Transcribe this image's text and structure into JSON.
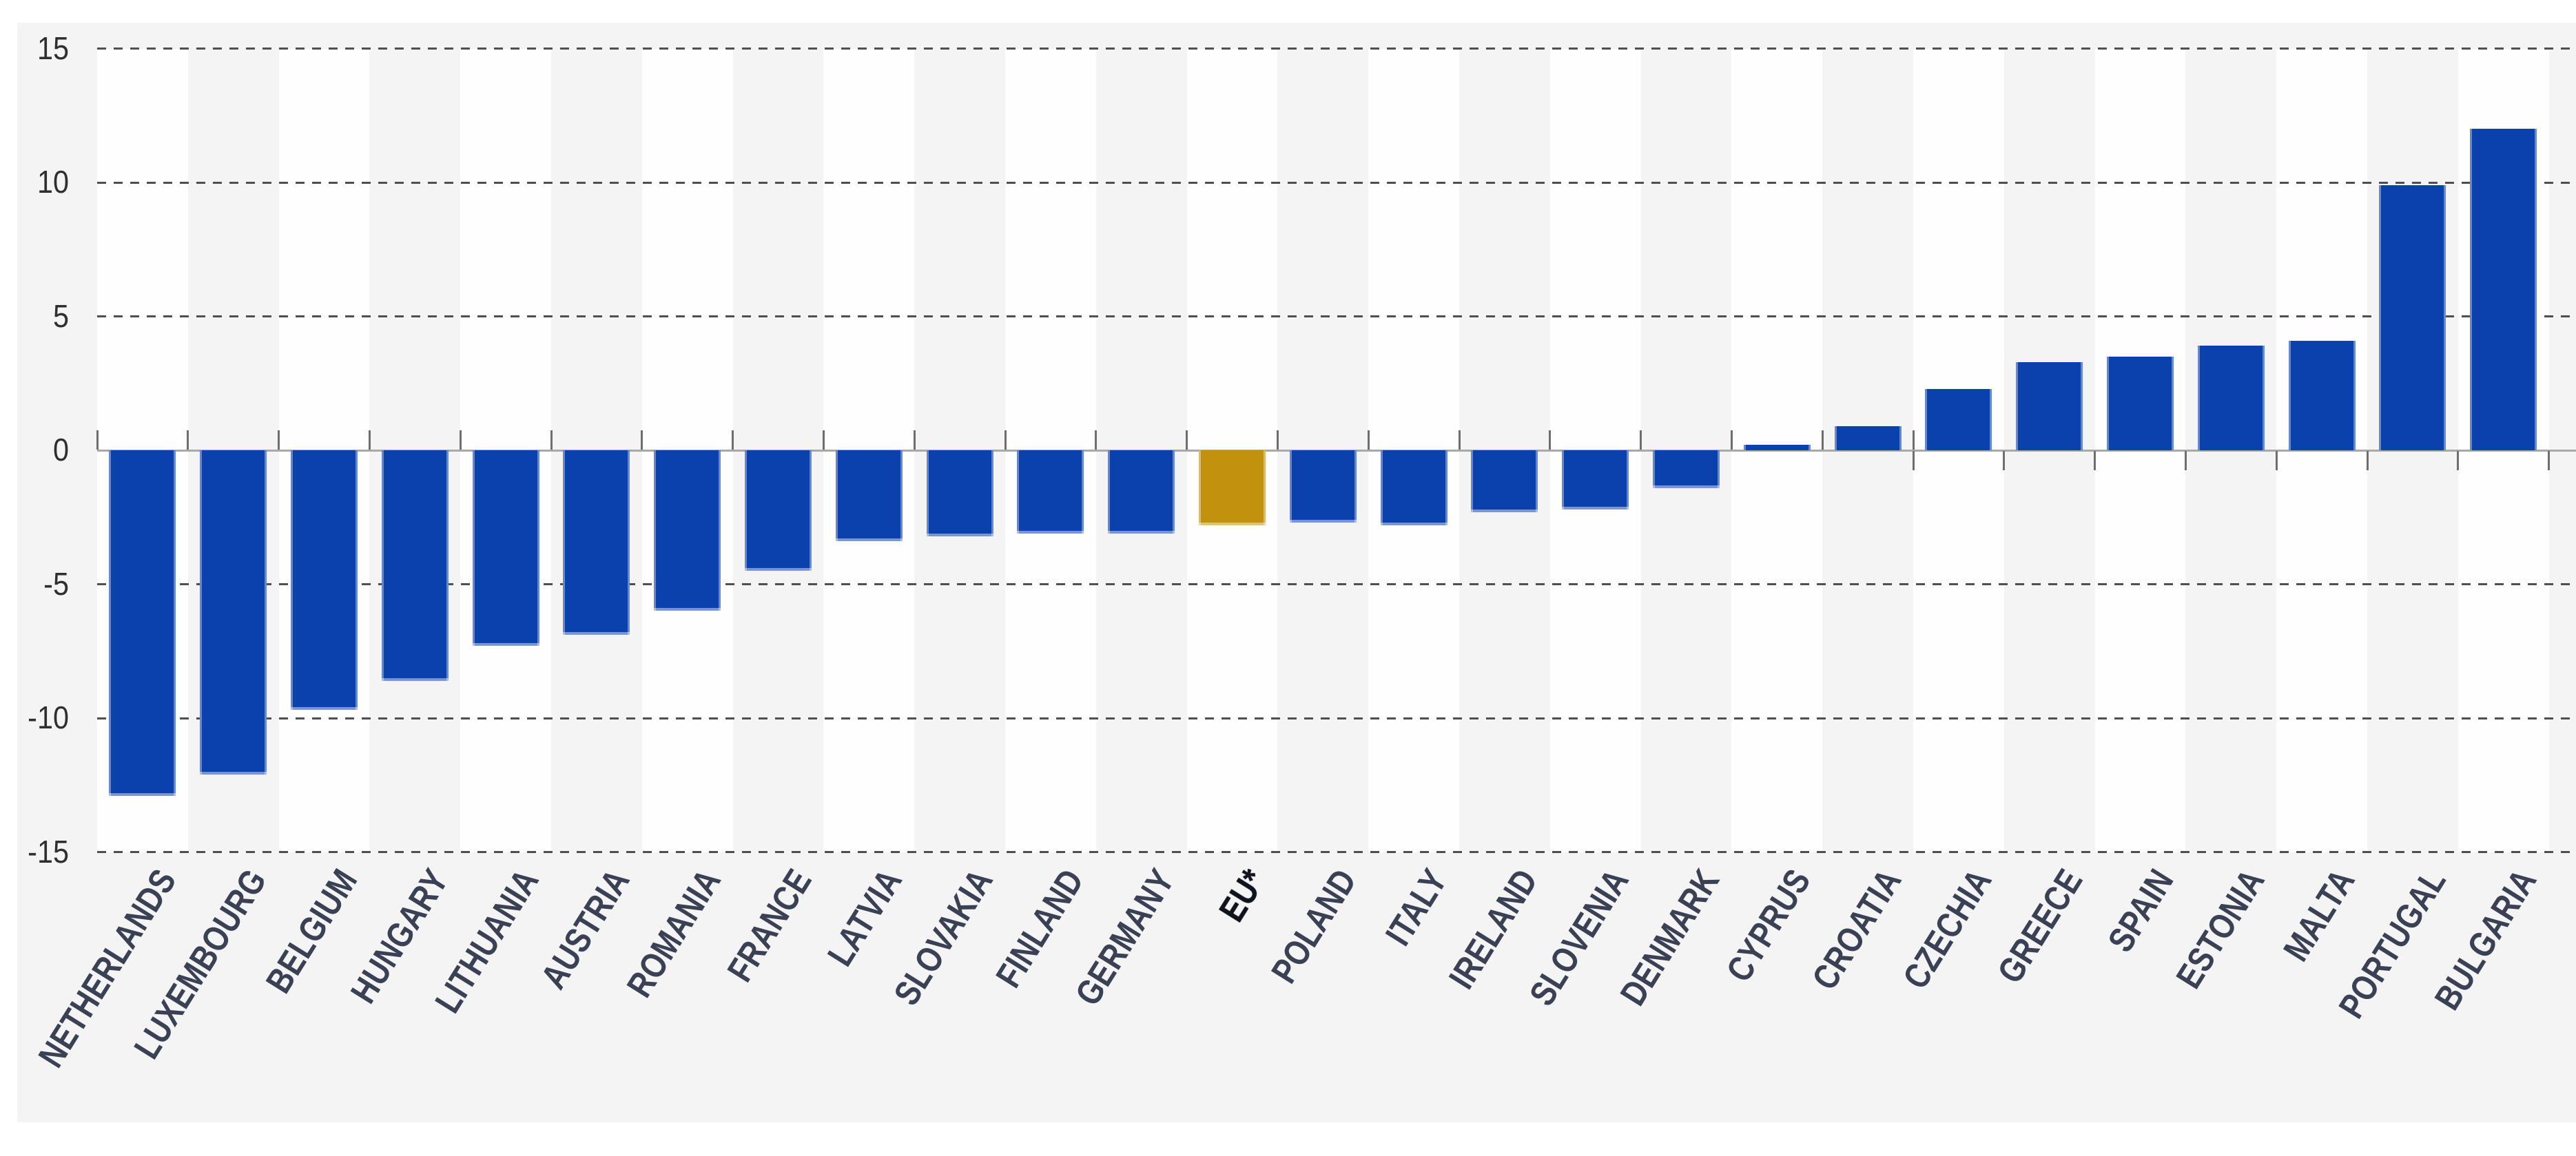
{
  "chart_data": {
    "type": "bar",
    "categories": [
      "NETHERLANDS",
      "LUXEMBOURG",
      "BELGIUM",
      "HUNGARY",
      "LITHUANIA",
      "AUSTRIA",
      "ROMANIA",
      "FRANCE",
      "LATVIA",
      "SLOVAKIA",
      "FINLAND",
      "GERMANY",
      "EU*",
      "POLAND",
      "ITALY",
      "IRELAND",
      "SLOVENIA",
      "DENMARK",
      "CYPRUS",
      "CROATIA",
      "CZECHIA",
      "GREECE",
      "SPAIN",
      "ESTONIA",
      "MALTA",
      "PORTUGAL",
      "BULGARIA"
    ],
    "values": [
      -12.9,
      -12.1,
      -9.7,
      -8.6,
      -7.3,
      -6.9,
      -6.0,
      -4.5,
      -3.4,
      -3.2,
      -3.1,
      -3.1,
      -2.8,
      -2.7,
      -2.8,
      -2.3,
      -2.2,
      -1.4,
      0.2,
      0.9,
      2.3,
      3.3,
      3.5,
      3.9,
      4.1,
      9.9,
      12.0
    ],
    "highlight_index": 12,
    "highlight_label": "EU*",
    "title": "",
    "xlabel": "",
    "ylabel": "",
    "ylim": [
      -15,
      15
    ],
    "y_tick_labels": [
      "15",
      "10",
      "5",
      "0",
      "-5",
      "-10",
      "-15"
    ],
    "y_ticks": [
      15,
      10,
      5,
      0,
      -5,
      -10,
      -15
    ],
    "grid": "dashed horizontal at 15,10,5,-5,-10,-15; solid axis at 0",
    "legend_position": "none",
    "bar_color": "#0b41ac",
    "highlight_color": "#c2910e",
    "panel_background": "#f4f4f4",
    "stripe_background": "#fefefe",
    "gridline_color": "#4f4f4f",
    "zero_axis_color": "#a8a8a8",
    "axis_text_color": "#2f2f2f",
    "category_text_color": "#3a4155"
  }
}
